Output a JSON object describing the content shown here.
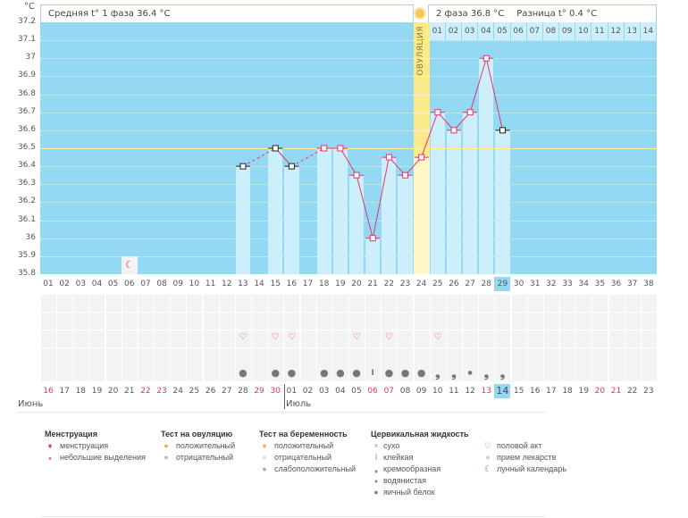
{
  "header": {
    "unit": "°C",
    "phase1": "Средняя t° 1 фаза 36.4 °C",
    "phase2": "2 фаза 36.8 °C",
    "diff": "Разница t° 0.4 °C",
    "ovulation_label": "ОВУЛЯЦИЯ"
  },
  "colors": {
    "plot_bg": "#93d9f3",
    "bar": "#cdeefb",
    "line": "#e8336a",
    "ovulation": "#fbe98c",
    "coverline": "#fff3a0"
  },
  "chart_data": {
    "type": "bar",
    "title": "",
    "ylabel": "°C",
    "ylim": [
      35.8,
      37.2
    ],
    "yticks": [
      "37.2",
      "37.1",
      "37",
      "36.9",
      "36.8",
      "36.7",
      "36.6",
      "36.5",
      "36.4",
      "36.3",
      "36.2",
      "36.1",
      "36",
      "35.9",
      "35.8"
    ],
    "cycle_days": [
      "01",
      "02",
      "03",
      "04",
      "05",
      "06",
      "07",
      "08",
      "09",
      "10",
      "11",
      "12",
      "13",
      "14",
      "15",
      "16",
      "17",
      "18",
      "19",
      "20",
      "21",
      "22",
      "23",
      "24",
      "25",
      "26",
      "27",
      "28",
      "29",
      "30",
      "31",
      "32",
      "33",
      "34",
      "35",
      "36",
      "37",
      "38"
    ],
    "post_ovulation_days": [
      "01",
      "02",
      "03",
      "04",
      "05",
      "06",
      "07",
      "08",
      "09",
      "10",
      "11",
      "12",
      "13",
      "14"
    ],
    "ovulation_day": 24,
    "coverline": 36.5,
    "current_day": 29,
    "temperatures": [
      {
        "day": 13,
        "t": 36.4,
        "excluded": true
      },
      {
        "day": 15,
        "t": 36.5,
        "excluded": true
      },
      {
        "day": 16,
        "t": 36.4,
        "excluded": true
      },
      {
        "day": 18,
        "t": 36.5
      },
      {
        "day": 19,
        "t": 36.5
      },
      {
        "day": 20,
        "t": 36.35
      },
      {
        "day": 21,
        "t": 36.0
      },
      {
        "day": 22,
        "t": 36.45
      },
      {
        "day": 23,
        "t": 36.35
      },
      {
        "day": 24,
        "t": 36.45
      },
      {
        "day": 25,
        "t": 36.7
      },
      {
        "day": 26,
        "t": 36.6
      },
      {
        "day": 27,
        "t": 36.7
      },
      {
        "day": 28,
        "t": 37.0
      },
      {
        "day": 29,
        "t": 36.6,
        "excluded": true
      }
    ],
    "moon_days": [
      6
    ],
    "intercourse_days": [
      13,
      15,
      16,
      20,
      22,
      25
    ],
    "cervical": [
      {
        "day": 13,
        "type": "egg"
      },
      {
        "day": 15,
        "type": "egg"
      },
      {
        "day": 16,
        "type": "egg"
      },
      {
        "day": 18,
        "type": "egg"
      },
      {
        "day": 19,
        "type": "egg"
      },
      {
        "day": 20,
        "type": "egg"
      },
      {
        "day": 21,
        "type": "sticky"
      },
      {
        "day": 22,
        "type": "egg"
      },
      {
        "day": 23,
        "type": "egg"
      },
      {
        "day": 24,
        "type": "egg"
      },
      {
        "day": 25,
        "type": "creamy"
      },
      {
        "day": 26,
        "type": "creamy"
      },
      {
        "day": 27,
        "type": "watery"
      },
      {
        "day": 28,
        "type": "creamy"
      },
      {
        "day": 29,
        "type": "creamy"
      }
    ],
    "dates": [
      "16",
      "17",
      "18",
      "19",
      "20",
      "21",
      "22",
      "23",
      "24",
      "25",
      "26",
      "27",
      "28",
      "29",
      "30",
      "01",
      "02",
      "03",
      "04",
      "05",
      "06",
      "07",
      "08",
      "09",
      "10",
      "11",
      "12",
      "13",
      "14",
      "15",
      "16",
      "17",
      "18",
      "19",
      "20",
      "21",
      "22",
      "23"
    ],
    "weekend_index": [
      0,
      6,
      7,
      13,
      14,
      20,
      21,
      27,
      34,
      35
    ],
    "months": [
      "Июнь",
      "Июль"
    ]
  },
  "legend": {
    "menstruation": {
      "title": "Менструация",
      "items": [
        "менструация",
        "небольшие выделения"
      ]
    },
    "ovulation_test": {
      "title": "Тест на овуляцию",
      "items": [
        "положительный",
        "отрицательный"
      ]
    },
    "pregnancy_test": {
      "title": "Тест на беременность",
      "items": [
        "положительный",
        "отрицательный",
        "слабоположительный"
      ]
    },
    "cervical": {
      "title": "Цервикальная жидкость",
      "items": [
        "сухо",
        "клейкая",
        "кремообразная",
        "водянистая",
        "яичный белок"
      ]
    },
    "other": {
      "items": [
        "половой акт",
        "прием лекарств",
        "лунный календарь"
      ]
    }
  }
}
